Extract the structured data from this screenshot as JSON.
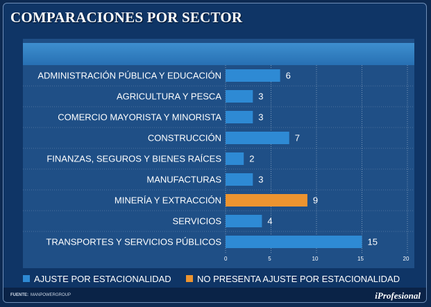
{
  "title": "COMPARACIONES POR SECTOR",
  "chart_data": {
    "type": "bar",
    "orientation": "horizontal",
    "title": "COMPARACIONES POR SECTOR",
    "categories": [
      "ADMINISTRACIÓN PÚBLICA Y EDUCACIÓN",
      "AGRICULTURA Y PESCA",
      "COMERCIO MAYORISTA Y MINORISTA",
      "CONSTRUCCIÓN",
      "FINANZAS, SEGUROS Y BIENES RAÍCES",
      "MANUFACTURAS",
      "MINERÍA Y EXTRACCIÓN",
      "SERVICIOS",
      "TRANSPORTES Y SERVICIOS PÚBLICOS"
    ],
    "values": [
      6,
      3,
      3,
      7,
      2,
      3,
      9,
      4,
      15
    ],
    "series_assignment": [
      "adjusted",
      "adjusted",
      "adjusted",
      "adjusted",
      "adjusted",
      "adjusted",
      "not_adjusted",
      "adjusted",
      "adjusted"
    ],
    "xlim": [
      0,
      20
    ],
    "xticks": [
      0,
      5,
      10,
      15,
      20
    ],
    "legend": [
      {
        "key": "adjusted",
        "label": "AJUSTE POR ESTACIONALIDAD",
        "color": "#2e8ad4"
      },
      {
        "key": "not_adjusted",
        "label": "NO PRESENTA AJUSTE POR ESTACIONALIDAD",
        "color": "#ec9430"
      }
    ],
    "legend_position": "bottom"
  },
  "footer": {
    "source_label": "FUENTE:",
    "source_value": "MANPOWERGROUP",
    "brand": "iProfesional"
  },
  "colors": {
    "background": "#0f3566",
    "panel": "#1f4f86",
    "gridline": "#9fb4cc"
  }
}
